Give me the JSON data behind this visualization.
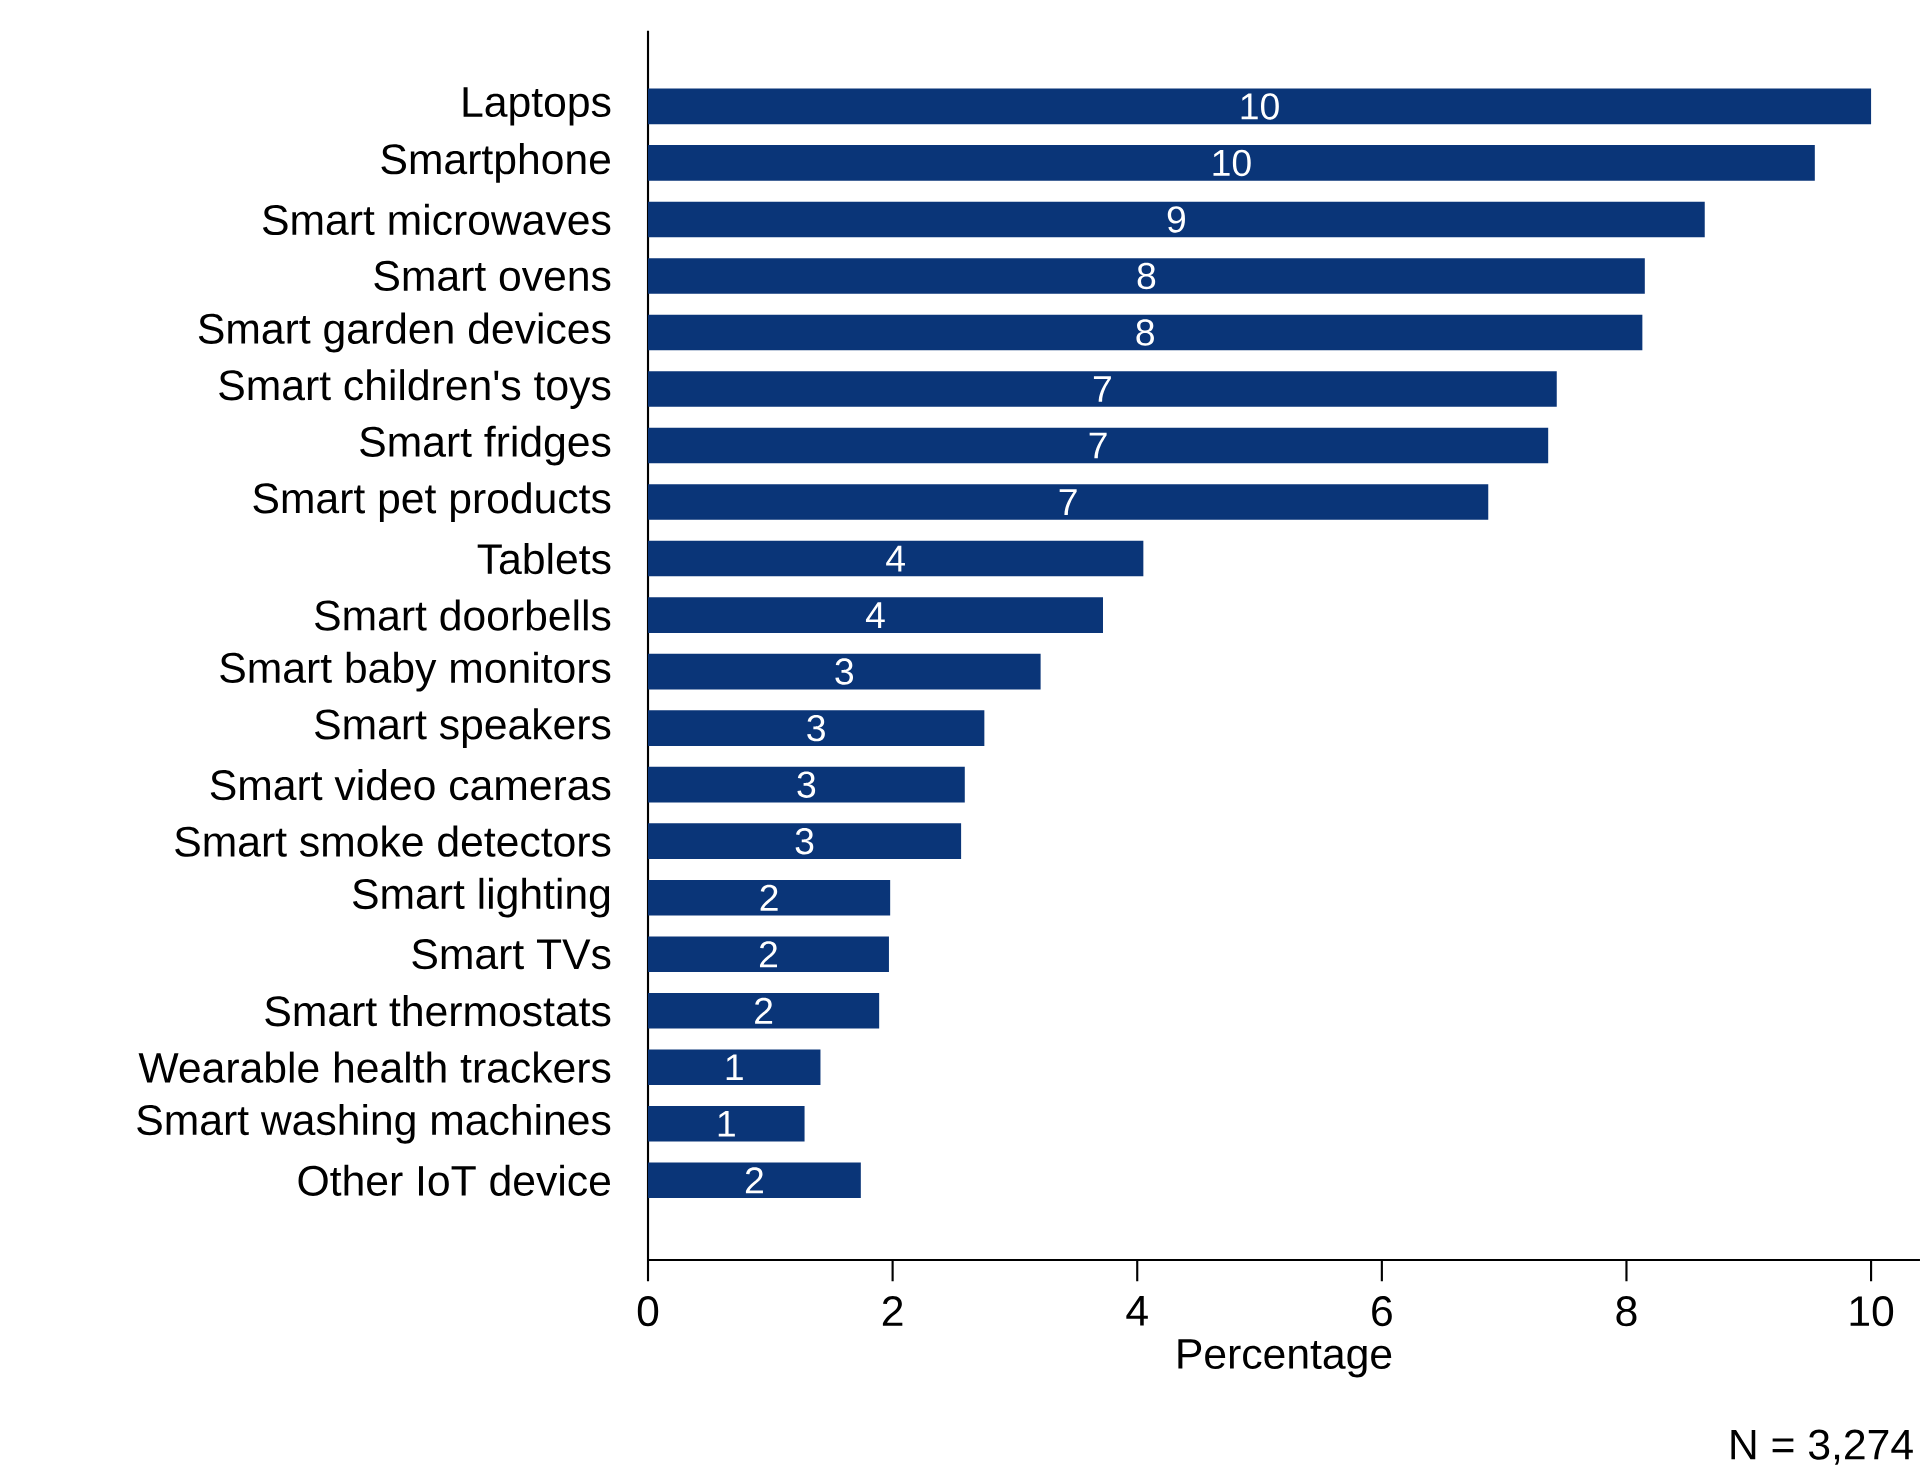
{
  "chart_data": {
    "type": "bar",
    "orientation": "horizontal",
    "categories": [
      "Laptops",
      "Smartphone",
      "Smart microwaves",
      "Smart ovens",
      "Smart garden devices",
      "Smart children's toys",
      "Smart fridges",
      "Smart pet products",
      "Tablets",
      "Smart doorbells",
      "Smart baby monitors",
      "Smart speakers",
      "Smart video cameras",
      "Smart smoke detectors",
      "Smart lighting",
      "Smart TVs",
      "Smart thermostats",
      "Wearable health trackers",
      "Smart washing machines",
      "Other IoT device"
    ],
    "values": [
      10.0,
      9.54,
      8.64,
      8.15,
      8.13,
      7.43,
      7.36,
      6.87,
      4.05,
      3.72,
      3.21,
      2.75,
      2.59,
      2.56,
      1.98,
      1.97,
      1.89,
      1.41,
      1.28,
      1.74
    ],
    "value_labels": [
      "10",
      "10",
      "9",
      "8",
      "8",
      "7",
      "7",
      "7",
      "4",
      "4",
      "3",
      "3",
      "3",
      "3",
      "2",
      "2",
      "2",
      "1",
      "1",
      "2"
    ],
    "color": "#0a3578",
    "xlabel": "Percentage",
    "xlim": [
      0,
      10.4
    ],
    "xticks": [
      0,
      2,
      4,
      6,
      8,
      10
    ],
    "annotations": [
      "N = 3,274"
    ]
  }
}
